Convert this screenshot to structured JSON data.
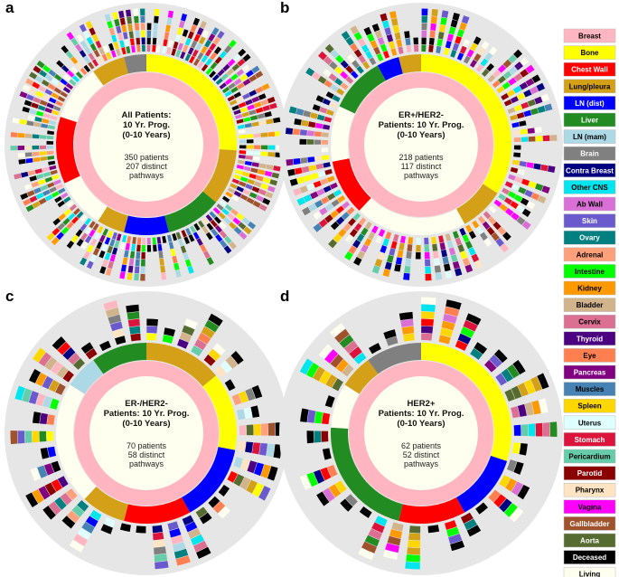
{
  "chart_data": {
    "type": "sunburst",
    "legend_position": "right",
    "panels": [
      {
        "letter": "a",
        "title_lines": [
          "All Patients:",
          "10 Yr. Prog.",
          "(0-10 Years)"
        ],
        "patients_text": "350 patients",
        "pathways_lines": [
          "207 distinct",
          "pathways"
        ],
        "patients": 350,
        "distinct_pathways": 207
      },
      {
        "letter": "b",
        "title_lines": [
          "ER+/HER2-",
          "Patients: 10 Yr. Prog.",
          "(0-10 Years)"
        ],
        "patients_text": "218 patients",
        "pathways_lines": [
          "117 distinct",
          "pathways"
        ],
        "patients": 218,
        "distinct_pathways": 117
      },
      {
        "letter": "c",
        "title_lines": [
          "ER-/HER2-",
          "Patients: 10 Yr. Prog.",
          "(0-10 Years)"
        ],
        "patients_text": "70 patients",
        "pathways_lines": [
          "58 distinct",
          "pathways"
        ],
        "patients": 70,
        "distinct_pathways": 58
      },
      {
        "letter": "d",
        "title_lines": [
          "HER2+",
          "Patients: 10 Yr. Prog.",
          "(0-10 Years)"
        ],
        "patients_text": "62 patients",
        "pathways_lines": [
          "52 distinct",
          "pathways"
        ],
        "patients": 62,
        "distinct_pathways": 52
      }
    ],
    "categories": [
      {
        "name": "Breast",
        "color": "#ffb6c1",
        "text": "#000000"
      },
      {
        "name": "Bone",
        "color": "#ffff00",
        "text": "#000000"
      },
      {
        "name": "Chest Wall",
        "color": "#ff0000",
        "text": "#ffffff"
      },
      {
        "name": "Lung/pleura",
        "color": "#d4a017",
        "text": "#000000"
      },
      {
        "name": "LN (dist)",
        "color": "#0000ff",
        "text": "#ffffff"
      },
      {
        "name": "Liver",
        "color": "#228b22",
        "text": "#ffffff"
      },
      {
        "name": "LN (mam)",
        "color": "#add8e6",
        "text": "#000000"
      },
      {
        "name": "Brain",
        "color": "#808080",
        "text": "#ffffff"
      },
      {
        "name": "Contra Breast",
        "color": "#000080",
        "text": "#ffffff"
      },
      {
        "name": "Other CNS",
        "color": "#00e5ee",
        "text": "#000000"
      },
      {
        "name": "Ab Wall",
        "color": "#da70d6",
        "text": "#000000"
      },
      {
        "name": "Skin",
        "color": "#6a5acd",
        "text": "#ffffff"
      },
      {
        "name": "Ovary",
        "color": "#008080",
        "text": "#ffffff"
      },
      {
        "name": "Adrenal",
        "color": "#ffa07a",
        "text": "#000000"
      },
      {
        "name": "Intestine",
        "color": "#00ff00",
        "text": "#000000"
      },
      {
        "name": "Kidney",
        "color": "#ff9900",
        "text": "#000000"
      },
      {
        "name": "Bladder",
        "color": "#d2b48c",
        "text": "#000000"
      },
      {
        "name": "Cervix",
        "color": "#db7093",
        "text": "#000000"
      },
      {
        "name": "Thyroid",
        "color": "#4b0082",
        "text": "#ffffff"
      },
      {
        "name": "Eye",
        "color": "#ff7f50",
        "text": "#000000"
      },
      {
        "name": "Pancreas",
        "color": "#800080",
        "text": "#ffffff"
      },
      {
        "name": "Muscles",
        "color": "#4682b4",
        "text": "#000000"
      },
      {
        "name": "Spleen",
        "color": "#ffd700",
        "text": "#000000"
      },
      {
        "name": "Uterus",
        "color": "#e0ffff",
        "text": "#000000"
      },
      {
        "name": "Stomach",
        "color": "#dc143c",
        "text": "#ffffff"
      },
      {
        "name": "Pericardium",
        "color": "#66cdaa",
        "text": "#000000"
      },
      {
        "name": "Parotid",
        "color": "#8b0000",
        "text": "#ffffff"
      },
      {
        "name": "Pharynx",
        "color": "#ffe4c4",
        "text": "#000000"
      },
      {
        "name": "Vagina",
        "color": "#ff00ff",
        "text": "#000000"
      },
      {
        "name": "Gallbladder",
        "color": "#a0522d",
        "text": "#ffffff"
      },
      {
        "name": "Aorta",
        "color": "#556b2f",
        "text": "#ffffff"
      },
      {
        "name": "Deceased",
        "color": "#000000",
        "text": "#ffffff"
      },
      {
        "name": "Living",
        "color": "#fffff0",
        "text": "#000000"
      }
    ],
    "first_ring_shares": {
      "a": [
        [
          "Bone",
          0.26
        ],
        [
          "Lung/pleura",
          0.1
        ],
        [
          "Liver",
          0.1
        ],
        [
          "LN (dist)",
          0.08
        ],
        [
          "Lung/pleura",
          0.05
        ],
        [
          "Living",
          0.09
        ],
        [
          "Chest Wall",
          0.12
        ],
        [
          "Living",
          0.1
        ],
        [
          "Lung/pleura",
          0.06
        ],
        [
          "Brain",
          0.04
        ]
      ],
      "b": [
        [
          "Bone",
          0.34
        ],
        [
          "Lung/pleura",
          0.08
        ],
        [
          "Living",
          0.2
        ],
        [
          "Chest Wall",
          0.1
        ],
        [
          "Living",
          0.1
        ],
        [
          "Liver",
          0.1
        ],
        [
          "LN (dist)",
          0.04
        ],
        [
          "Lung/pleura",
          0.04
        ]
      ],
      "c": [
        [
          "Lung/pleura",
          0.14
        ],
        [
          "Bone",
          0.14
        ],
        [
          "LN (dist)",
          0.14
        ],
        [
          "Chest Wall",
          0.12
        ],
        [
          "Lung/pleura",
          0.08
        ],
        [
          "Living",
          0.22
        ],
        [
          "LN (mam)",
          0.06
        ],
        [
          "Liver",
          0.1
        ]
      ],
      "d": [
        [
          "Bone",
          0.3
        ],
        [
          "LN (dist)",
          0.12
        ],
        [
          "Chest Wall",
          0.12
        ],
        [
          "Liver",
          0.22
        ],
        [
          "Living",
          0.08
        ],
        [
          "Lung/pleura",
          0.06
        ],
        [
          "Brain",
          0.1
        ]
      ]
    }
  }
}
